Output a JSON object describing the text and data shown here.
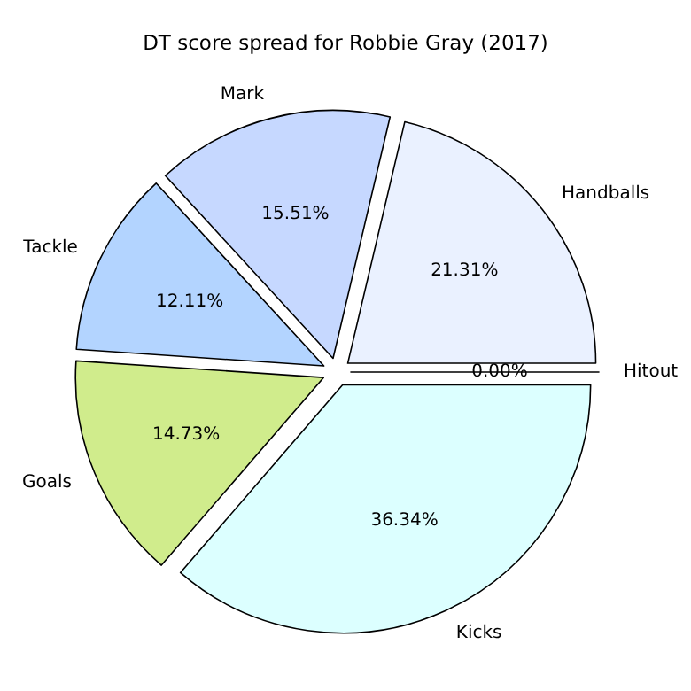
{
  "chart_data": {
    "type": "pie",
    "title": "DT score spread for Robbie Gray (2017)",
    "categories": [
      "Handballs",
      "Mark",
      "Tackle",
      "Goals",
      "Kicks",
      "Hitout"
    ],
    "values": [
      21.31,
      15.51,
      12.11,
      14.73,
      36.34,
      0.0
    ],
    "value_labels": [
      "21.31%",
      "15.51%",
      "12.11%",
      "14.73%",
      "36.34%",
      "0.00%"
    ],
    "colors": [
      "#eaf1ff",
      "#c6d8ff",
      "#b3d4ff",
      "#d0ec8c",
      "#dcffff",
      "#ffffff"
    ]
  }
}
